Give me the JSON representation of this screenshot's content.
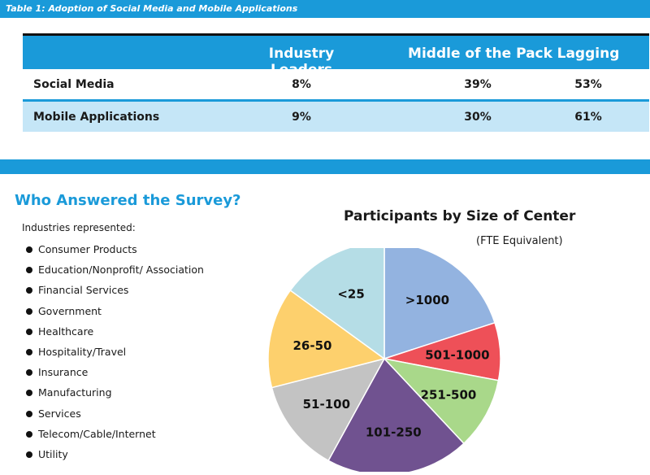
{
  "caption": "Table 1: Adoption of Social Media and Mobile Applications",
  "table": {
    "headers": [
      "",
      "Industry Leaders",
      "Middle of the Pack",
      "Lagging"
    ],
    "rows": [
      {
        "label": "Social Media",
        "values": [
          "8%",
          "39%",
          "53%"
        ]
      },
      {
        "label": "Mobile Applications",
        "values": [
          "9%",
          "30%",
          "61%"
        ]
      }
    ]
  },
  "section": {
    "title": "Who Answered the Survey?",
    "industries_label": "Industries represented:",
    "industries": [
      "Consumer Products",
      "Education/Nonprofit/ Association",
      "Financial Services",
      "Government",
      "Healthcare",
      "Hospitality/Travel",
      "Insurance",
      "Manufacturing",
      "Services",
      "Telecom/Cable/Internet",
      "Utility"
    ]
  },
  "chart_data": {
    "type": "pie",
    "title": "Participants by Size of Center",
    "subtitle": "(FTE Equivalent)",
    "categories": [
      ">1000",
      "501-1000",
      "251-500",
      "101-250",
      "51-100",
      "26-50",
      "<25"
    ],
    "values": [
      20,
      8,
      10,
      20,
      13,
      14,
      15
    ],
    "colors": [
      "#93b3e0",
      "#ee5058",
      "#a9d88a",
      "#705290",
      "#c3c3c3",
      "#fdd06d",
      "#b5dde6"
    ]
  }
}
